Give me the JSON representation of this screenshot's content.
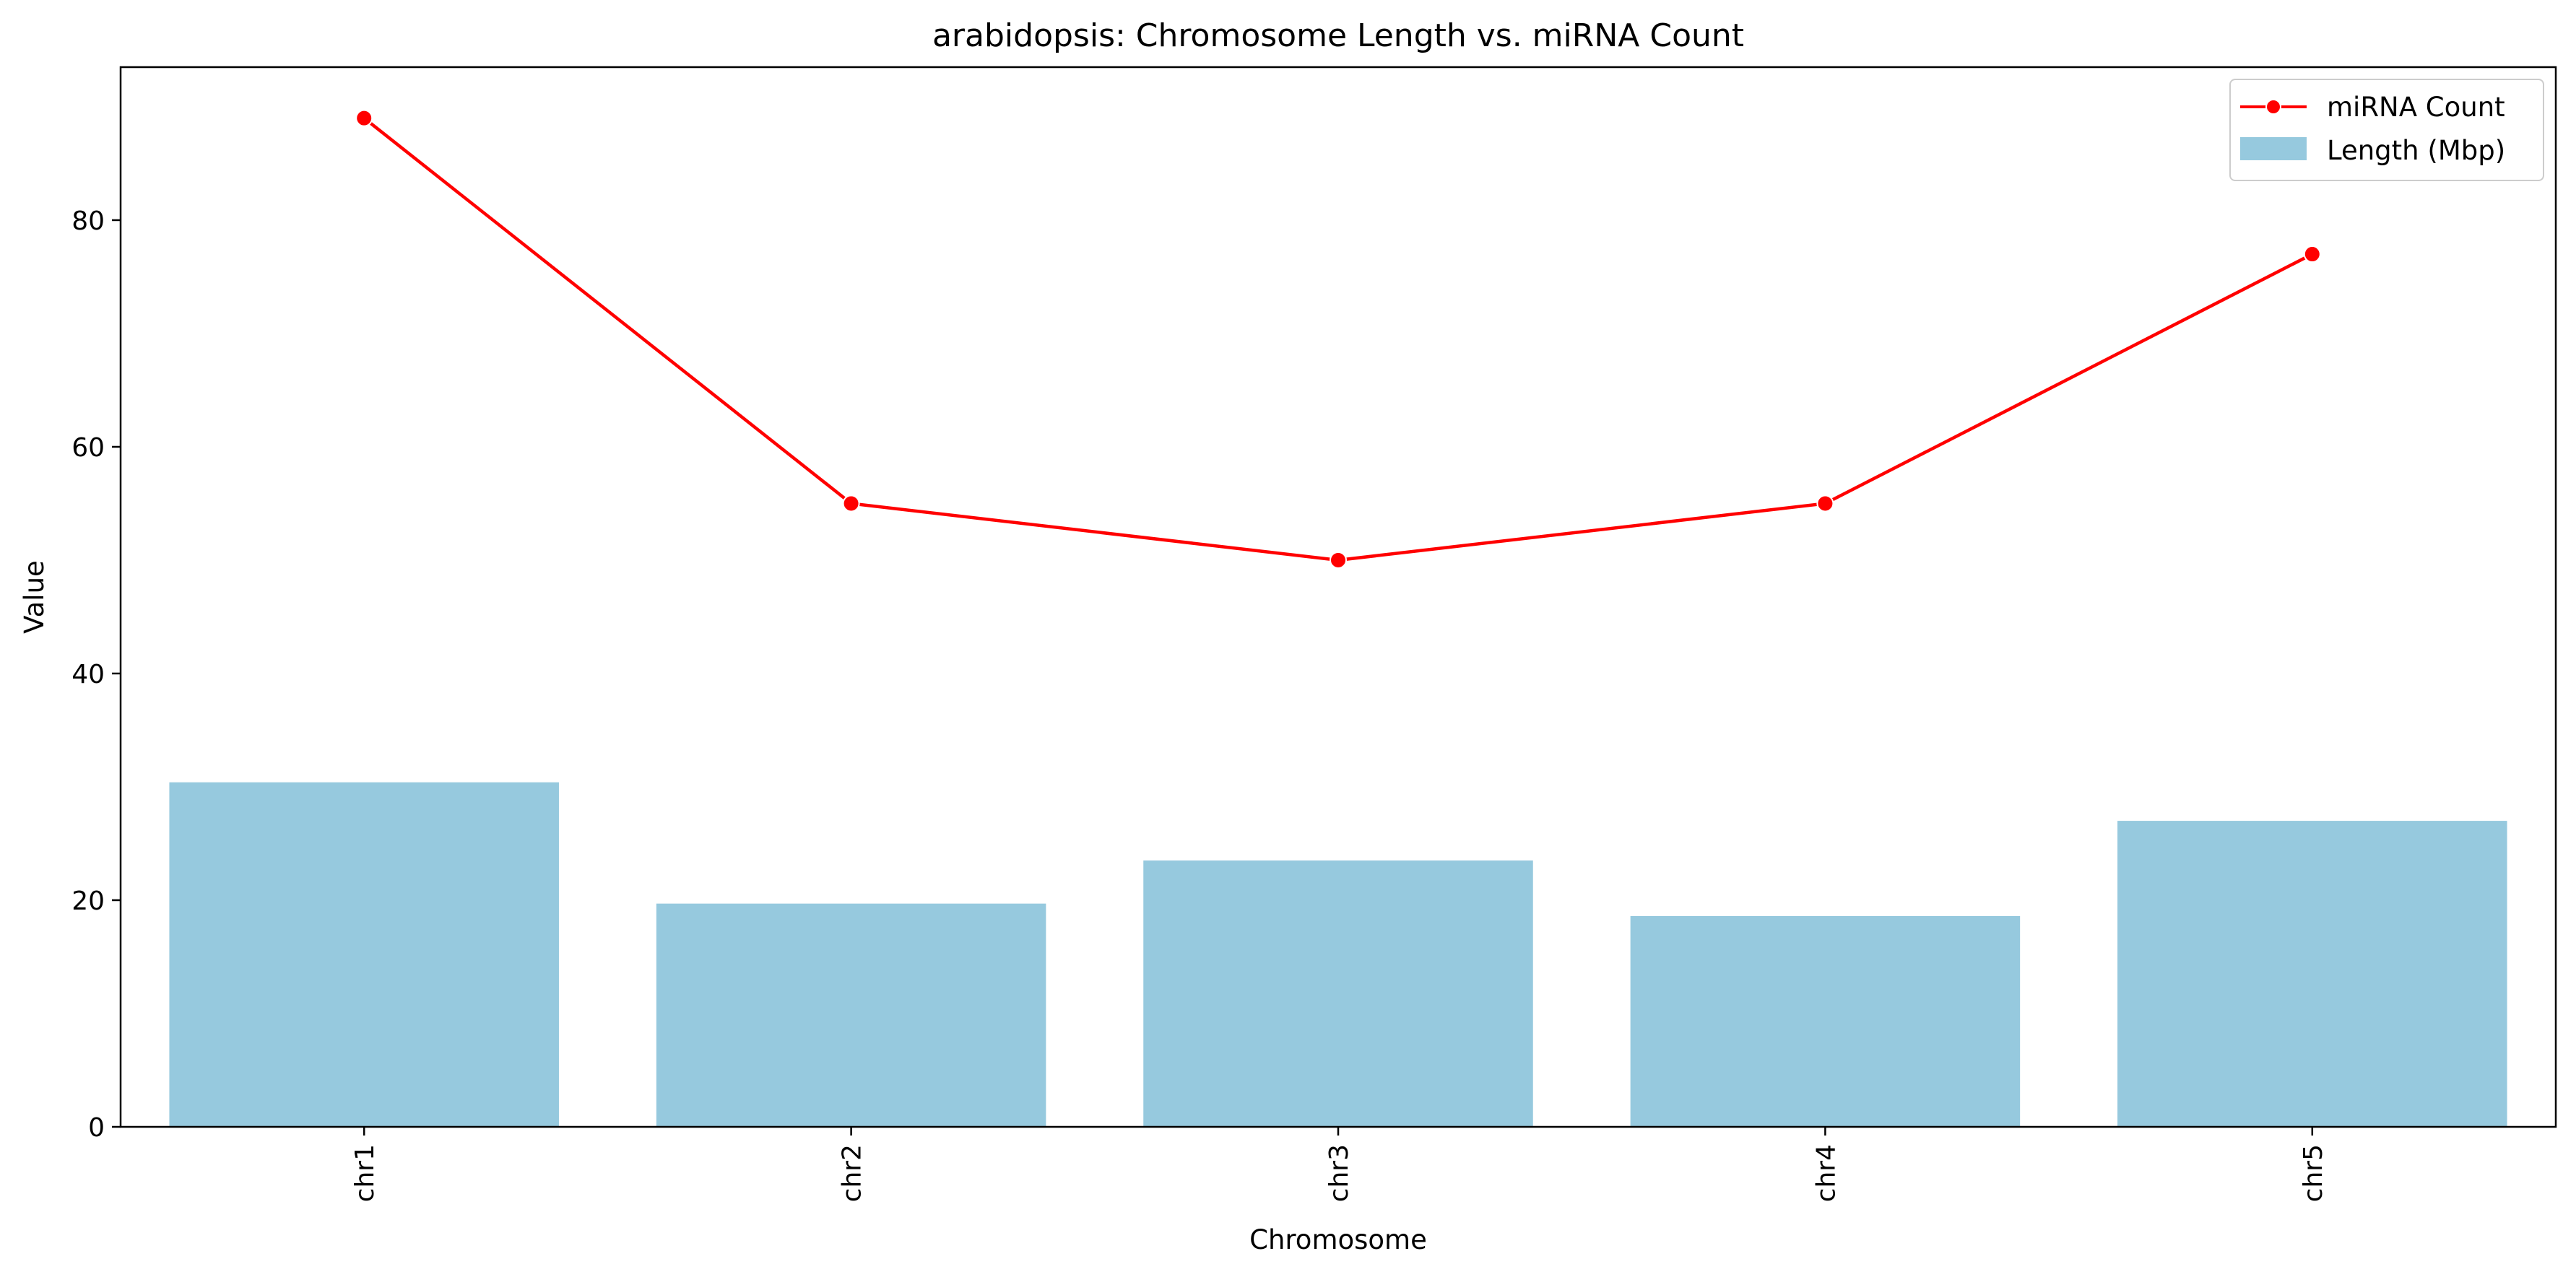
{
  "chart_data": {
    "type": "bar",
    "title": "arabidopsis: Chromosome Length vs. miRNA Count",
    "xlabel": "Chromosome",
    "ylabel": "Value",
    "categories": [
      "chr1",
      "chr2",
      "chr3",
      "chr4",
      "chr5"
    ],
    "ylim": [
      0,
      93.5
    ],
    "yticks": [
      0,
      20,
      40,
      60,
      80
    ],
    "grid": false,
    "legend_position": "top-right",
    "series": [
      {
        "name": "Length (Mbp)",
        "type": "bar",
        "color": "#96c9de",
        "values": [
          30.4,
          19.7,
          23.5,
          18.6,
          27.0
        ]
      },
      {
        "name": "miRNA Count",
        "type": "line",
        "color": "#ff0000",
        "marker": "circle",
        "values": [
          89,
          55,
          50,
          55,
          77
        ]
      }
    ]
  }
}
